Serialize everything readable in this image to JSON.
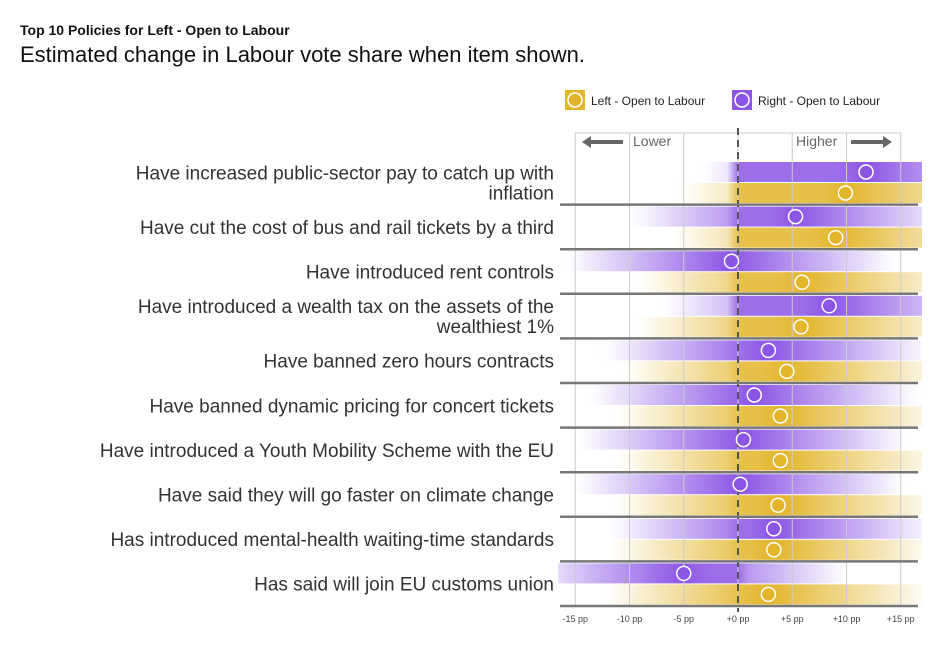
{
  "chart_data": {
    "type": "dot",
    "title": "Top 10 Policies for Left - Open to Labour",
    "subtitle": "Estimated change in Labour vote share when item shown.",
    "direction_labels": {
      "lower": "Lower",
      "higher": "Higher"
    },
    "xlim": [
      -15,
      15
    ],
    "xticks": [
      -15,
      -10,
      -5,
      0,
      5,
      10,
      15
    ],
    "xtick_labels": [
      "-15 pp",
      "-10 pp",
      "-5 pp",
      "+0 pp",
      "+5 pp",
      "+10 pp",
      "+15 pp"
    ],
    "categories": [
      [
        "Have increased public-sector pay to catch up with",
        "inflation"
      ],
      [
        "Have cut the cost of bus and rail tickets by a third"
      ],
      [
        "Have introduced rent controls"
      ],
      [
        "Have introduced a wealth tax on the assets of the",
        "wealthiest 1%"
      ],
      [
        "Have banned zero hours contracts"
      ],
      [
        "Have banned dynamic pricing for concert tickets"
      ],
      [
        "Have introduced a Youth Mobility Scheme with the EU"
      ],
      [
        "Have said they will go faster on climate change"
      ],
      [
        "Has introduced mental-health waiting-time standards"
      ],
      [
        "Has said will join EU customs union"
      ]
    ],
    "series": [
      {
        "name": "Right - Open to Labour",
        "color": "#8b55e6",
        "values": [
          11.8,
          5.3,
          -0.6,
          8.4,
          2.8,
          1.5,
          0.5,
          0.2,
          3.3,
          -5.0
        ]
      },
      {
        "name": "Left - Open to Labour",
        "color": "#e3b52a",
        "values": [
          9.9,
          9.0,
          5.9,
          5.8,
          4.5,
          3.9,
          3.9,
          3.7,
          3.3,
          2.8
        ]
      }
    ],
    "legend_order": [
      1,
      0
    ],
    "legend_position": "top-right"
  }
}
